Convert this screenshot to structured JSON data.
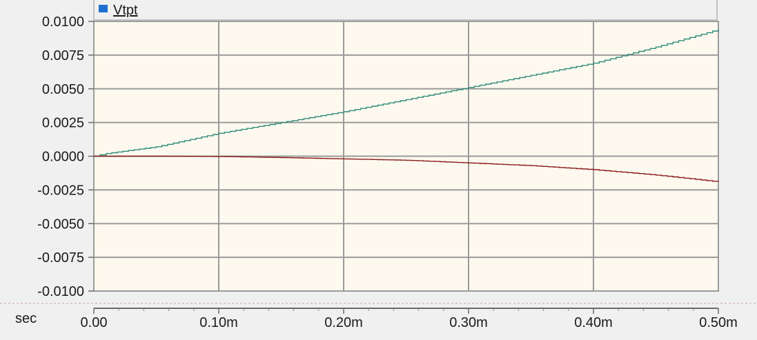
{
  "legend": {
    "entries": [
      {
        "label": "Vtpt",
        "color": "#1f6fd1"
      }
    ]
  },
  "colors": {
    "plot_background": "#fdf9ee",
    "grid": "#9a9a9a",
    "panel_background": "#f0f0f0",
    "separator": "#c8a0a0"
  },
  "chart_data": {
    "type": "line",
    "title": "",
    "xlabel": "sec",
    "ylabel": "",
    "x_unit": "sec",
    "xlim": [
      0,
      0.0005
    ],
    "ylim": [
      -0.01,
      0.01
    ],
    "x_ticks": [
      0,
      0.0001,
      0.0002,
      0.0003,
      0.0004,
      0.0005
    ],
    "x_tick_labels": [
      "0.00",
      "0.10m",
      "0.20m",
      "0.30m",
      "0.40m",
      "0.50m"
    ],
    "y_ticks": [
      0.01,
      0.0075,
      0.005,
      0.0025,
      0,
      -0.0025,
      -0.005,
      -0.0075,
      -0.01
    ],
    "y_tick_labels": [
      "0.0100",
      "0.0075",
      "0.0050",
      "0.0025",
      "0.0000",
      "-0.0025",
      "-0.0050",
      "-0.0075",
      "-0.0100"
    ],
    "grid": true,
    "legend_position": "top-left",
    "series": [
      {
        "color": "#2e8b7a",
        "step": true,
        "x": [
          0,
          1e-05,
          5e-05,
          0.0001,
          0.00015,
          0.0002,
          0.00025,
          0.0003,
          0.00035,
          0.0004,
          0.00045,
          0.0005
        ],
        "y": [
          0,
          0.0002,
          0.0007,
          0.0017,
          0.0025,
          0.0033,
          0.0042,
          0.0051,
          0.006,
          0.0069,
          0.0081,
          0.0094
        ]
      },
      {
        "color": "#8b1a1a",
        "step": true,
        "x": [
          0,
          5e-05,
          0.0001,
          0.00015,
          0.0002,
          0.00025,
          0.0003,
          0.00035,
          0.0004,
          0.00045,
          0.0005
        ],
        "y": [
          0,
          0,
          -2e-05,
          -0.0001,
          -0.0002,
          -0.0003,
          -0.0005,
          -0.0007,
          -0.001,
          -0.0014,
          -0.0019
        ]
      }
    ]
  }
}
